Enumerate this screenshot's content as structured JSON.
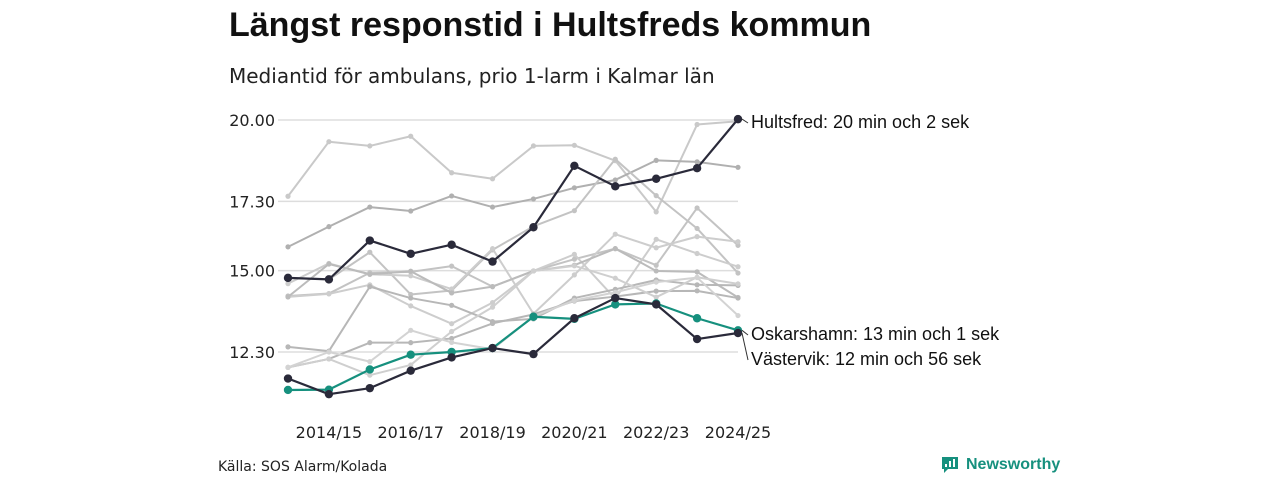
{
  "title": "Längst responstid i Hultsfreds kommun",
  "subtitle": "Mediantid för ambulans, prio 1-larm i Kalmar län",
  "source": "Källa: SOS Alarm/Kolada",
  "brand": {
    "name": "Newsworthy",
    "icon": "newsworthy-logo-icon",
    "color": "#16907e"
  },
  "chart_data": {
    "type": "line",
    "x": [
      "2013/14",
      "2014/15",
      "2015/16",
      "2016/17",
      "2017/18",
      "2018/19",
      "2019/20",
      "2020/21",
      "2021/22",
      "2022/23",
      "2023/24",
      "2024/25"
    ],
    "x_tick_labels": [
      "2014/15",
      "2016/17",
      "2018/19",
      "2020/21",
      "2022/23",
      "2024/25"
    ],
    "y_ticks": [
      12.3,
      15.0,
      17.3,
      20.0
    ],
    "y_tick_labels": [
      "12.30",
      "15.00",
      "17.30",
      "20.00"
    ],
    "ylim": [
      11.05,
      20.0
    ],
    "grid": true,
    "legend": "none",
    "series": [
      {
        "name": "Hultsfred",
        "color": "#2a2a3a",
        "highlight": true,
        "values": [
          14.76,
          14.71,
          16.0,
          15.56,
          15.86,
          15.3,
          16.44,
          18.48,
          17.8,
          18.05,
          18.4,
          20.03
        ]
      },
      {
        "name": "Oskarshamn",
        "color": "#16907e",
        "highlight": true,
        "values": [
          11.04,
          11.05,
          11.72,
          12.21,
          12.3,
          12.43,
          13.47,
          13.4,
          13.88,
          13.91,
          13.42,
          13.02
        ]
      },
      {
        "name": "Västervik",
        "color": "#2a2a3a",
        "highlight": true,
        "values": [
          11.42,
          10.9,
          11.1,
          11.68,
          12.12,
          12.43,
          12.23,
          13.42,
          14.09,
          13.88,
          12.73,
          12.93
        ]
      },
      {
        "color": "#c9c9c9",
        "values": [
          17.47,
          19.28,
          19.14,
          19.46,
          18.25,
          18.05,
          19.14,
          19.16,
          18.65,
          16.95,
          19.85,
          19.96
        ]
      },
      {
        "color": "#b0b0b0",
        "values": [
          15.79,
          16.46,
          17.11,
          16.98,
          17.48,
          17.11,
          17.38,
          17.75,
          18.01,
          18.66,
          18.61,
          18.43
        ]
      },
      {
        "color": "#c3c3c3",
        "values": [
          14.76,
          14.71,
          15.61,
          14.21,
          14.34,
          15.69,
          16.47,
          16.99,
          18.7,
          17.49,
          16.4,
          14.92
        ]
      },
      {
        "color": "#c3c3c3",
        "values": [
          14.16,
          14.24,
          14.93,
          14.96,
          15.15,
          14.47,
          14.99,
          15.38,
          15.73,
          15.18,
          17.08,
          15.84
        ]
      },
      {
        "color": "#cdcdcd",
        "values": [
          14.57,
          15.24,
          14.88,
          14.83,
          14.39,
          15.73,
          13.57,
          14.86,
          16.21,
          15.76,
          16.13,
          15.96
        ]
      },
      {
        "color": "#cdcdcd",
        "values": [
          14.13,
          14.23,
          14.53,
          13.83,
          13.24,
          13.94,
          14.99,
          15.54,
          14.07,
          16.04,
          15.57,
          15.13
        ]
      },
      {
        "color": "#bbbbbb",
        "values": [
          14.13,
          15.22,
          14.88,
          14.98,
          14.26,
          14.47,
          14.99,
          15.18,
          15.73,
          14.99,
          14.96,
          14.11
        ]
      },
      {
        "color": "#b7b7b7",
        "values": [
          12.47,
          12.33,
          14.47,
          14.09,
          13.85,
          13.31,
          13.4,
          14.09,
          14.38,
          14.69,
          14.53,
          14.51
        ]
      },
      {
        "color": "#b7b7b7",
        "values": [
          11.79,
          12.07,
          12.61,
          12.61,
          12.75,
          13.25,
          13.55,
          13.99,
          14.14,
          14.32,
          14.33,
          14.09
        ]
      },
      {
        "color": "#cfcfcf",
        "values": [
          11.79,
          12.07,
          11.53,
          11.87,
          12.98,
          13.79,
          14.99,
          15.16,
          14.75,
          14.12,
          14.78,
          14.56
        ]
      },
      {
        "color": "#d3d3d3",
        "values": [
          11.79,
          12.3,
          11.98,
          13.02,
          12.62,
          12.39,
          13.48,
          14.01,
          14.28,
          14.62,
          14.77,
          13.51
        ]
      }
    ],
    "annotations": [
      {
        "series": "Hultsfred",
        "text": "Hultsfred: 20 min och 2 sek"
      },
      {
        "series": "Oskarshamn",
        "text": "Oskarshamn: 13 min och 1 sek"
      },
      {
        "series": "Västervik",
        "text": "Västervik: 12 min och 56 sek"
      }
    ]
  }
}
